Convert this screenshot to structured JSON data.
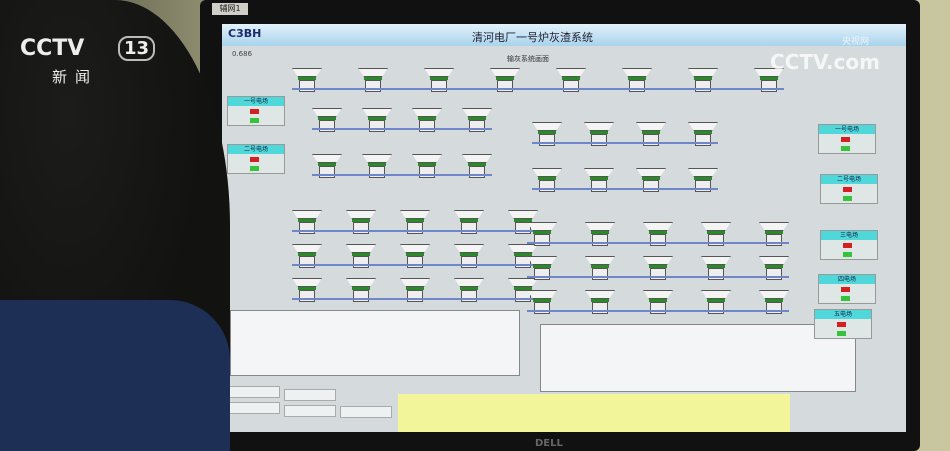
{
  "broadcast": {
    "channel_logo": "CCTV",
    "channel_number": "13",
    "channel_name": "新闻",
    "watermark": "CCTV.com",
    "watermark_cn": "央视网"
  },
  "monitor": {
    "tab": "辅网1",
    "brand": "DELL"
  },
  "app": {
    "logo": "C3BH",
    "title": "清河电厂一号炉灰渣系统",
    "subtitle": "输灰系统画面",
    "pressure_value": "0.686"
  },
  "panels": [
    {
      "label": "一号电场"
    },
    {
      "label": "二号电场"
    },
    {
      "label": "一号电场"
    },
    {
      "label": "二号电场"
    },
    {
      "label": "三电场"
    },
    {
      "label": "四电场"
    },
    {
      "label": "五电场"
    }
  ],
  "colors": {
    "running": "#d42020",
    "stopped": "#36c23a",
    "header": "#4fd7d9",
    "alarm_bg": "#f3f59a"
  }
}
